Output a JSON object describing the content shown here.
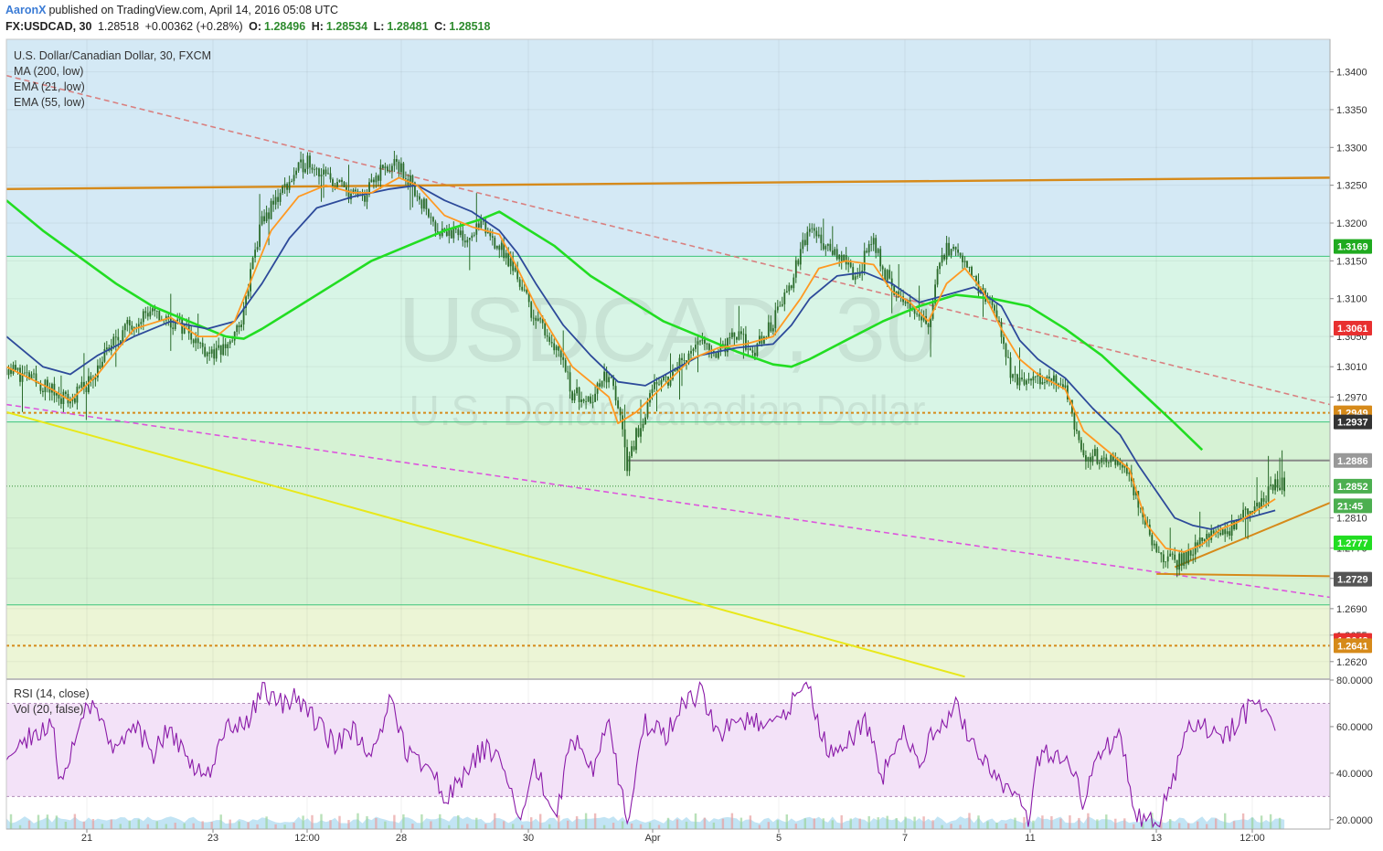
{
  "header": {
    "author": "AaronX",
    "published_text": "published on TradingView.com, April 14, 2016 05:08 UTC",
    "symbol": "FX:USDCAD, 30",
    "last": "1.28518",
    "change": "+0.00362 (+0.28%)",
    "o_label": "O:",
    "o_value": "1.28496",
    "h_label": "H:",
    "h_value": "1.28534",
    "l_label": "L:",
    "l_value": "1.28481",
    "c_label": "C:",
    "c_value": "1.28518"
  },
  "legend": {
    "main_title": "U.S. Dollar/Canadian Dollar, 30, FXCM",
    "ma200": "MA (200, low)",
    "ema21": "EMA (21, low)",
    "ema55": "EMA (55, low)",
    "rsi": "RSI (14, close)",
    "vol": "Vol (20, false)"
  },
  "watermark": {
    "symbol": "USDCAD, 30",
    "name": "U.S. Dollar/Canadian Dollar"
  },
  "colors": {
    "candles": "#2a6b2a",
    "ma200": "#22dd22",
    "ema21": "#ff9922",
    "ema55": "#2d4a9a",
    "rsi": "#8a1aa8",
    "resistance_dashed": "#d98080",
    "support_dashed": "#dd55dd",
    "yellow_trend": "#e8e81a",
    "orange_level": "#d68a1a"
  },
  "chart_data": [
    {
      "type": "candlestick",
      "title": "U.S. Dollar/Canadian Dollar, 30, FXCM",
      "price_axis_ticks": [
        "1.3400",
        "1.3350",
        "1.3300",
        "1.3250",
        "1.3200",
        "1.3150",
        "1.3100",
        "1.3050",
        "1.3010",
        "1.2970",
        "1.2810",
        "1.2770",
        "1.2730",
        "1.2690",
        "1.2655",
        "1.2620"
      ],
      "time_axis_ticks": [
        "21",
        "23",
        "12:00",
        "28",
        "30",
        "Apr",
        "5",
        "7",
        "11",
        "13",
        "12:00"
      ],
      "ylim": [
        1.2598,
        1.3443
      ],
      "last_price": 1.2852,
      "price_labels": [
        {
          "value": 1.3169,
          "text": "1.3169",
          "color": "#1faa1f"
        },
        {
          "value": 1.3061,
          "text": "1.3061",
          "color": "#e83030"
        },
        {
          "value": 1.2949,
          "text": "1.2949",
          "color": "#d68a1a"
        },
        {
          "value": 1.2937,
          "text": "1.2937",
          "color": "#333333"
        },
        {
          "value": 1.2886,
          "text": "1.2886",
          "color": "#999999"
        },
        {
          "value": 1.2852,
          "text": "1.2852",
          "color": "#4caf50"
        },
        {
          "value": 1.2826,
          "text": "21:45",
          "color": "#4caf50"
        },
        {
          "value": 1.2777,
          "text": "1.2777",
          "color": "#22dd22"
        },
        {
          "value": 1.2729,
          "text": "1.2729",
          "color": "#555555"
        },
        {
          "value": 1.2648,
          "text": "1.2648",
          "color": "#e83030"
        },
        {
          "value": 1.2641,
          "text": "1.2641",
          "color": "#d68a1a"
        }
      ],
      "horizontal_levels": [
        1.3156,
        1.2949,
        1.2937,
        1.2886,
        1.2852,
        1.2695,
        1.2641
      ],
      "price_path": [
        [
          0,
          1.301
        ],
        [
          4,
          1.2985
        ],
        [
          7,
          1.2965
        ],
        [
          9,
          1.299
        ],
        [
          11,
          1.303
        ],
        [
          13,
          1.306
        ],
        [
          15,
          1.308
        ],
        [
          17,
          1.3075
        ],
        [
          20,
          1.306
        ],
        [
          21,
          1.304
        ],
        [
          23,
          1.3025
        ],
        [
          25,
          1.305
        ],
        [
          26,
          1.308
        ],
        [
          27,
          1.315
        ],
        [
          28,
          1.32
        ],
        [
          30,
          1.324
        ],
        [
          32,
          1.327
        ],
        [
          33,
          1.3285
        ],
        [
          35,
          1.326
        ],
        [
          37,
          1.3245
        ],
        [
          39,
          1.323
        ],
        [
          41,
          1.327
        ],
        [
          43,
          1.3275
        ],
        [
          45,
          1.324
        ],
        [
          47,
          1.3195
        ],
        [
          50,
          1.318
        ],
        [
          52,
          1.3195
        ],
        [
          54,
          1.317
        ],
        [
          56,
          1.313
        ],
        [
          58,
          1.307
        ],
        [
          59,
          1.306
        ],
        [
          61,
          1.302
        ],
        [
          62,
          1.2975
        ],
        [
          64,
          1.297
        ],
        [
          66,
          1.3
        ],
        [
          67,
          1.296
        ],
        [
          68,
          1.288
        ],
        [
          69,
          1.292
        ],
        [
          71,
          1.298
        ],
        [
          73,
          1.3
        ],
        [
          74,
          1.302
        ],
        [
          76,
          1.304
        ],
        [
          78,
          1.303
        ],
        [
          80,
          1.305
        ],
        [
          82,
          1.303
        ],
        [
          84,
          1.307
        ],
        [
          86,
          1.312
        ],
        [
          87,
          1.316
        ],
        [
          88,
          1.3195
        ],
        [
          90,
          1.317
        ],
        [
          93,
          1.313
        ],
        [
          95,
          1.3175
        ],
        [
          96,
          1.314
        ],
        [
          98,
          1.3095
        ],
        [
          100,
          1.308
        ],
        [
          101,
          1.306
        ],
        [
          102,
          1.314
        ],
        [
          103,
          1.317
        ],
        [
          105,
          1.314
        ],
        [
          107,
          1.311
        ],
        [
          109,
          1.306
        ],
        [
          110,
          1.3
        ],
        [
          112,
          1.299
        ],
        [
          114,
          1.2995
        ],
        [
          116,
          1.298
        ],
        [
          117,
          1.293
        ],
        [
          118,
          1.2895
        ],
        [
          120,
          1.289
        ],
        [
          122,
          1.2885
        ],
        [
          123,
          1.286
        ],
        [
          124,
          1.283
        ],
        [
          125,
          1.28
        ],
        [
          126,
          1.2765
        ],
        [
          128,
          1.275
        ],
        [
          130,
          1.2765
        ],
        [
          132,
          1.279
        ],
        [
          134,
          1.279
        ],
        [
          135,
          1.281
        ],
        [
          137,
          1.283
        ],
        [
          139,
          1.2855
        ],
        [
          140,
          1.2852
        ]
      ],
      "ma200_path": [
        [
          0,
          1.323
        ],
        [
          4,
          1.319
        ],
        [
          8,
          1.3155
        ],
        [
          12,
          1.312
        ],
        [
          16,
          1.309
        ],
        [
          20,
          1.307
        ],
        [
          24,
          1.305
        ],
        [
          26,
          1.3047
        ],
        [
          28,
          1.306
        ],
        [
          32,
          1.309
        ],
        [
          36,
          1.312
        ],
        [
          40,
          1.315
        ],
        [
          44,
          1.317
        ],
        [
          48,
          1.319
        ],
        [
          52,
          1.3205
        ],
        [
          54,
          1.3215
        ],
        [
          56,
          1.32
        ],
        [
          60,
          1.317
        ],
        [
          64,
          1.313
        ],
        [
          68,
          1.31
        ],
        [
          72,
          1.307
        ],
        [
          76,
          1.305
        ],
        [
          80,
          1.303
        ],
        [
          84,
          1.3013
        ],
        [
          86,
          1.301
        ],
        [
          88,
          1.302
        ],
        [
          92,
          1.3045
        ],
        [
          96,
          1.307
        ],
        [
          100,
          1.309
        ],
        [
          104,
          1.3105
        ],
        [
          108,
          1.31
        ],
        [
          112,
          1.309
        ],
        [
          116,
          1.306
        ],
        [
          120,
          1.3025
        ],
        [
          124,
          1.298
        ],
        [
          128,
          1.2935
        ],
        [
          131,
          1.29
        ]
      ],
      "ema21_path": [
        [
          0,
          1.301
        ],
        [
          5,
          1.298
        ],
        [
          7,
          1.2965
        ],
        [
          10,
          1.3
        ],
        [
          14,
          1.306
        ],
        [
          18,
          1.3075
        ],
        [
          21,
          1.305
        ],
        [
          23,
          1.305
        ],
        [
          25,
          1.307
        ],
        [
          27,
          1.313
        ],
        [
          29,
          1.319
        ],
        [
          32,
          1.3235
        ],
        [
          35,
          1.325
        ],
        [
          38,
          1.324
        ],
        [
          40,
          1.324
        ],
        [
          43,
          1.326
        ],
        [
          45,
          1.325
        ],
        [
          48,
          1.321
        ],
        [
          51,
          1.3195
        ],
        [
          54,
          1.3185
        ],
        [
          56,
          1.314
        ],
        [
          58,
          1.309
        ],
        [
          60,
          1.305
        ],
        [
          62,
          1.301
        ],
        [
          64,
          1.299
        ],
        [
          66,
          1.297
        ],
        [
          67,
          1.2935
        ],
        [
          69,
          1.295
        ],
        [
          72,
          1.2985
        ],
        [
          75,
          1.302
        ],
        [
          78,
          1.3035
        ],
        [
          81,
          1.304
        ],
        [
          84,
          1.305
        ],
        [
          87,
          1.31
        ],
        [
          89,
          1.314
        ],
        [
          92,
          1.315
        ],
        [
          95,
          1.3145
        ],
        [
          97,
          1.311
        ],
        [
          99,
          1.3095
        ],
        [
          101,
          1.307
        ],
        [
          103,
          1.312
        ],
        [
          105,
          1.314
        ],
        [
          107,
          1.311
        ],
        [
          109,
          1.306
        ],
        [
          111,
          1.302
        ],
        [
          113,
          1.3
        ],
        [
          116,
          1.298
        ],
        [
          118,
          1.2925
        ],
        [
          120,
          1.2905
        ],
        [
          123,
          1.2875
        ],
        [
          125,
          1.28
        ],
        [
          127,
          1.277
        ],
        [
          129,
          1.2765
        ],
        [
          131,
          1.2775
        ],
        [
          133,
          1.2795
        ],
        [
          135,
          1.2805
        ],
        [
          137,
          1.282
        ],
        [
          139,
          1.2835
        ]
      ],
      "ema55_path": [
        [
          0,
          1.305
        ],
        [
          4,
          1.301
        ],
        [
          7,
          1.3
        ],
        [
          10,
          1.3025
        ],
        [
          14,
          1.305
        ],
        [
          18,
          1.307
        ],
        [
          22,
          1.306
        ],
        [
          25,
          1.307
        ],
        [
          28,
          1.312
        ],
        [
          31,
          1.318
        ],
        [
          34,
          1.322
        ],
        [
          38,
          1.3235
        ],
        [
          42,
          1.3245
        ],
        [
          45,
          1.325
        ],
        [
          48,
          1.323
        ],
        [
          51,
          1.3215
        ],
        [
          54,
          1.319
        ],
        [
          56,
          1.316
        ],
        [
          58,
          1.312
        ],
        [
          61,
          1.3065
        ],
        [
          64,
          1.3025
        ],
        [
          67,
          1.299
        ],
        [
          70,
          1.2985
        ],
        [
          73,
          1.3005
        ],
        [
          76,
          1.3025
        ],
        [
          80,
          1.3035
        ],
        [
          84,
          1.304
        ],
        [
          86,
          1.3065
        ],
        [
          88,
          1.31
        ],
        [
          91,
          1.313
        ],
        [
          94,
          1.3135
        ],
        [
          97,
          1.312
        ],
        [
          100,
          1.3095
        ],
        [
          103,
          1.3105
        ],
        [
          106,
          1.3115
        ],
        [
          109,
          1.309
        ],
        [
          111,
          1.3045
        ],
        [
          113,
          1.302
        ],
        [
          116,
          1.2995
        ],
        [
          119,
          1.2955
        ],
        [
          122,
          1.292
        ],
        [
          124,
          1.288
        ],
        [
          126,
          1.2845
        ],
        [
          128,
          1.281
        ],
        [
          130,
          1.28
        ],
        [
          132,
          1.2795
        ],
        [
          134,
          1.2805
        ],
        [
          136,
          1.281
        ],
        [
          139,
          1.282
        ]
      ],
      "trendlines": [
        {
          "name": "resistance",
          "from": [
            0,
            1.3395
          ],
          "to": [
            145,
            1.296
          ],
          "style": "dashed"
        },
        {
          "name": "support",
          "from": [
            0,
            1.296
          ],
          "to": [
            145,
            1.2705
          ],
          "style": "dashed"
        },
        {
          "name": "yellow",
          "from": [
            0,
            1.295
          ],
          "to": [
            105,
            1.26
          ],
          "style": "solid"
        },
        {
          "name": "orange_long",
          "from": [
            0,
            1.3245
          ],
          "to": [
            145,
            1.326
          ],
          "style": "solid"
        },
        {
          "name": "orange_flat",
          "from": [
            126,
            1.2736
          ],
          "to": [
            145,
            1.2733
          ],
          "style": "solid"
        },
        {
          "name": "orange_rising",
          "from": [
            128,
            1.2745
          ],
          "to": [
            145,
            1.283
          ],
          "style": "solid"
        }
      ]
    },
    {
      "type": "line",
      "title": "RSI (14, close)",
      "rsi_axis_ticks": [
        "80.0000",
        "60.0000",
        "40.0000",
        "20.0000"
      ],
      "ylim": [
        16,
        80
      ],
      "bands": [
        30,
        70
      ],
      "rsi_path": [
        [
          0,
          45
        ],
        [
          3,
          58
        ],
        [
          5,
          62
        ],
        [
          6,
          34
        ],
        [
          8,
          65
        ],
        [
          10,
          68
        ],
        [
          12,
          50
        ],
        [
          14,
          62
        ],
        [
          16,
          48
        ],
        [
          18,
          60
        ],
        [
          20,
          42
        ],
        [
          22,
          38
        ],
        [
          24,
          58
        ],
        [
          26,
          60
        ],
        [
          28,
          75
        ],
        [
          30,
          70
        ],
        [
          32,
          72
        ],
        [
          34,
          62
        ],
        [
          36,
          52
        ],
        [
          38,
          58
        ],
        [
          40,
          48
        ],
        [
          42,
          70
        ],
        [
          44,
          48
        ],
        [
          46,
          44
        ],
        [
          48,
          30
        ],
        [
          50,
          38
        ],
        [
          52,
          50
        ],
        [
          54,
          50
        ],
        [
          56,
          20
        ],
        [
          58,
          44
        ],
        [
          60,
          18
        ],
        [
          62,
          56
        ],
        [
          64,
          40
        ],
        [
          66,
          60
        ],
        [
          68,
          18
        ],
        [
          70,
          62
        ],
        [
          72,
          55
        ],
        [
          74,
          68
        ],
        [
          76,
          75
        ],
        [
          78,
          58
        ],
        [
          80,
          60
        ],
        [
          82,
          64
        ],
        [
          84,
          58
        ],
        [
          86,
          70
        ],
        [
          88,
          76
        ],
        [
          90,
          48
        ],
        [
          92,
          52
        ],
        [
          94,
          62
        ],
        [
          96,
          38
        ],
        [
          98,
          58
        ],
        [
          100,
          46
        ],
        [
          102,
          60
        ],
        [
          104,
          68
        ],
        [
          106,
          52
        ],
        [
          108,
          38
        ],
        [
          110,
          32
        ],
        [
          112,
          20
        ],
        [
          113,
          46
        ],
        [
          115,
          50
        ],
        [
          117,
          38
        ],
        [
          118,
          26
        ],
        [
          120,
          52
        ],
        [
          122,
          54
        ],
        [
          124,
          20
        ],
        [
          126,
          18
        ],
        [
          128,
          38
        ],
        [
          129,
          58
        ],
        [
          131,
          60
        ],
        [
          133,
          54
        ],
        [
          135,
          62
        ],
        [
          137,
          72
        ],
        [
          139,
          62
        ]
      ]
    }
  ]
}
